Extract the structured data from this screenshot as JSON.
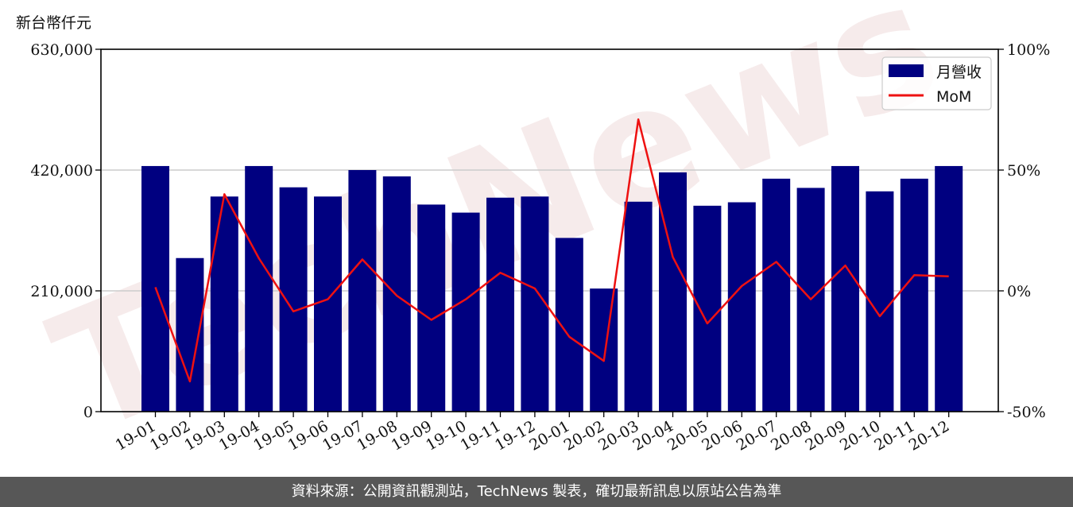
{
  "unit_label": "新台幣仟元",
  "footer": "資料來源：公開資訊觀測站，TechNews 製表，確切最新訊息以原站公告為準",
  "watermark": "TechNews",
  "colors": {
    "bar": "#000080",
    "line": "#ee1111",
    "grid": "#cccccc",
    "footer_bg": "#575757"
  },
  "chart_data": {
    "type": "bar",
    "categories": [
      "19-01",
      "19-02",
      "19-03",
      "19-04",
      "19-05",
      "19-06",
      "19-07",
      "19-08",
      "19-09",
      "19-10",
      "19-11",
      "19-12",
      "20-01",
      "20-02",
      "20-03",
      "20-04",
      "20-05",
      "20-06",
      "20-07",
      "20-08",
      "20-09",
      "20-10",
      "20-11",
      "20-12"
    ],
    "series": [
      {
        "name": "月營收",
        "type": "bar",
        "axis": "left",
        "values": [
          427000,
          267000,
          374000,
          427000,
          390000,
          374000,
          420000,
          409000,
          360000,
          346000,
          372000,
          374000,
          302000,
          214000,
          365000,
          416000,
          358000,
          364000,
          405000,
          389000,
          427000,
          383000,
          405000,
          427000
        ]
      },
      {
        "name": "MoM",
        "type": "line",
        "axis": "right",
        "values": [
          1.5,
          -37.5,
          40,
          13.5,
          -8.5,
          -3.5,
          13,
          -2,
          -12,
          -3.5,
          7.5,
          1,
          -19,
          -29,
          71,
          14,
          -13.5,
          2,
          12,
          -3.5,
          10.5,
          -10.5,
          6.5,
          6
        ]
      }
    ],
    "y_left": {
      "min": 0,
      "max": 630000,
      "ticks": [
        0,
        210000,
        420000,
        630000
      ],
      "tick_labels": [
        "0",
        "210,000",
        "420,000",
        "630,000"
      ]
    },
    "y_right": {
      "min": -50,
      "max": 100,
      "ticks": [
        -50,
        0,
        50,
        100
      ],
      "tick_labels": [
        "-50%",
        "0%",
        "50%",
        "100%"
      ]
    },
    "legend": {
      "position": "top-right",
      "entries": [
        "月營收",
        "MoM"
      ]
    },
    "grid": "horizontal"
  }
}
